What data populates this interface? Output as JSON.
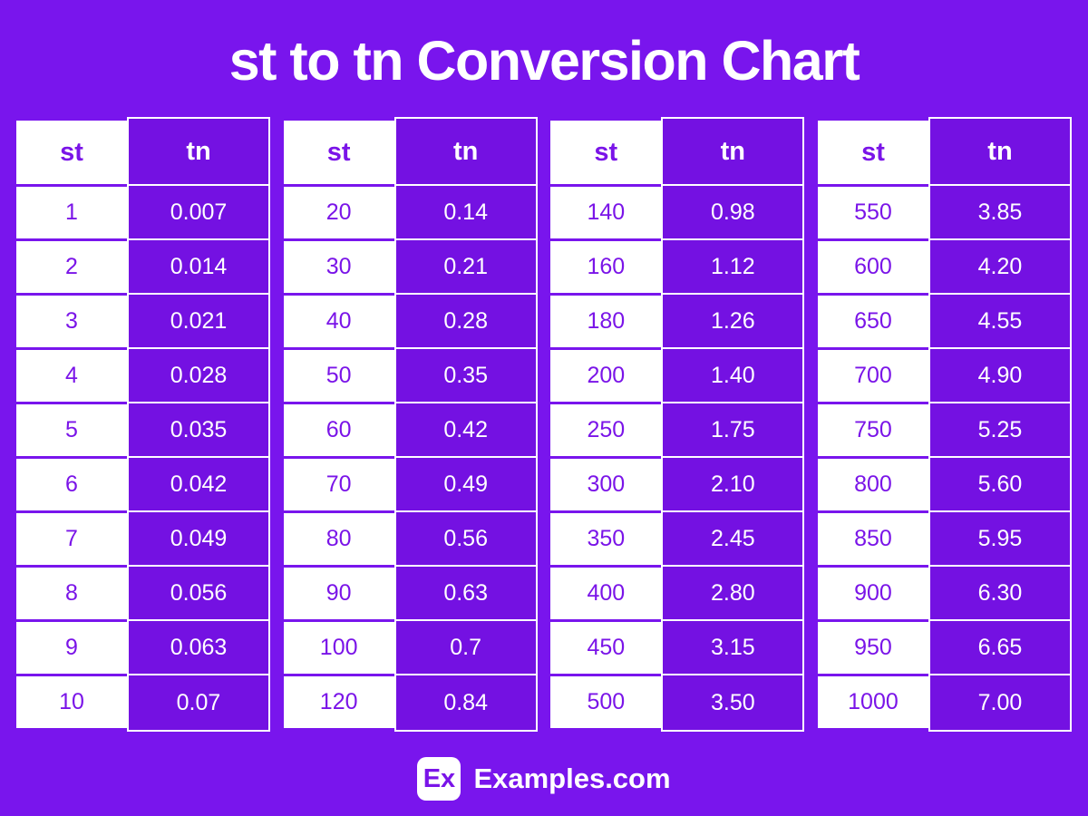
{
  "title": "st to tn Conversion Chart",
  "colors": {
    "background": "#7915ED",
    "cell_purple": "#7411E2",
    "text_purple": "#7A14E8",
    "text_white": "#FFFFFF"
  },
  "chart_data": {
    "type": "table",
    "title": "st to tn Conversion Chart",
    "columns": [
      "st",
      "tn"
    ],
    "tables": [
      {
        "rows": [
          [
            "1",
            "0.007"
          ],
          [
            "2",
            "0.014"
          ],
          [
            "3",
            "0.021"
          ],
          [
            "4",
            "0.028"
          ],
          [
            "5",
            "0.035"
          ],
          [
            "6",
            "0.042"
          ],
          [
            "7",
            "0.049"
          ],
          [
            "8",
            "0.056"
          ],
          [
            "9",
            "0.063"
          ],
          [
            "10",
            "0.07"
          ]
        ]
      },
      {
        "rows": [
          [
            "20",
            "0.14"
          ],
          [
            "30",
            "0.21"
          ],
          [
            "40",
            "0.28"
          ],
          [
            "50",
            "0.35"
          ],
          [
            "60",
            "0.42"
          ],
          [
            "70",
            "0.49"
          ],
          [
            "80",
            "0.56"
          ],
          [
            "90",
            "0.63"
          ],
          [
            "100",
            "0.7"
          ],
          [
            "120",
            "0.84"
          ]
        ]
      },
      {
        "rows": [
          [
            "140",
            "0.98"
          ],
          [
            "160",
            "1.12"
          ],
          [
            "180",
            "1.26"
          ],
          [
            "200",
            "1.40"
          ],
          [
            "250",
            "1.75"
          ],
          [
            "300",
            "2.10"
          ],
          [
            "350",
            "2.45"
          ],
          [
            "400",
            "2.80"
          ],
          [
            "450",
            "3.15"
          ],
          [
            "500",
            "3.50"
          ]
        ]
      },
      {
        "rows": [
          [
            "550",
            "3.85"
          ],
          [
            "600",
            "4.20"
          ],
          [
            "650",
            "4.55"
          ],
          [
            "700",
            "4.90"
          ],
          [
            "750",
            "5.25"
          ],
          [
            "800",
            "5.60"
          ],
          [
            "850",
            "5.95"
          ],
          [
            "900",
            "6.30"
          ],
          [
            "950",
            "6.65"
          ],
          [
            "1000",
            "7.00"
          ]
        ]
      }
    ]
  },
  "footer": {
    "logo_text": "Ex",
    "site_name": "Examples.com"
  }
}
